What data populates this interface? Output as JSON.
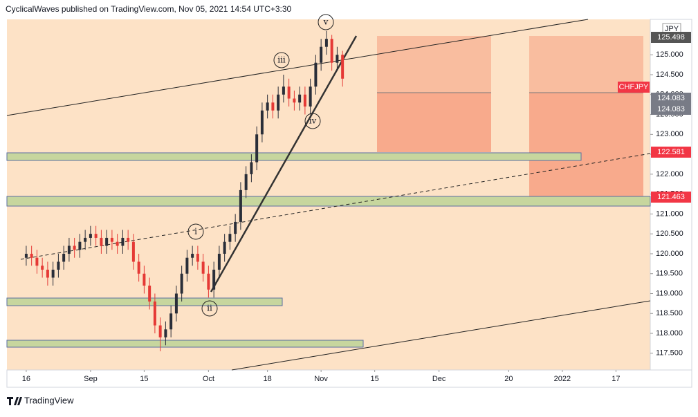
{
  "header": "CyclicalWaves published on TradingView.com, Nov 05, 2021 14:54 UTC+3:30",
  "footer": "TradingView",
  "chart_data": {
    "type": "candlestick",
    "symbol": "CHFJPY",
    "currency": "JPY",
    "x": [
      0,
      1,
      2,
      3,
      4,
      5,
      6,
      7,
      8,
      9,
      10,
      11,
      12,
      13,
      14,
      15,
      16,
      17,
      18,
      19,
      20,
      21,
      22,
      23,
      24,
      25,
      26,
      27,
      28,
      29,
      30,
      31,
      32,
      33,
      34,
      35,
      36,
      37,
      38,
      39,
      40,
      41,
      42,
      43,
      44,
      45,
      46,
      47,
      48,
      49,
      50,
      51,
      52,
      53,
      54,
      55,
      56,
      57,
      58,
      59
    ],
    "open": [
      119.9,
      120.0,
      119.9,
      119.7,
      119.6,
      119.4,
      119.6,
      119.8,
      120.0,
      120.2,
      120.1,
      120.3,
      120.4,
      120.5,
      120.4,
      120.2,
      120.4,
      120.3,
      120.2,
      120.4,
      120.3,
      119.8,
      119.5,
      119.2,
      118.8,
      118.2,
      117.9,
      118.1,
      118.5,
      119.0,
      119.5,
      119.9,
      120.0,
      119.8,
      119.5,
      119.1,
      119.6,
      120.0,
      120.3,
      120.5,
      120.8,
      121.6,
      122.0,
      122.3,
      123.0,
      123.6,
      123.8,
      123.6,
      124.0,
      124.2,
      123.9,
      123.8,
      124.0,
      123.7,
      124.2,
      124.8,
      125.2,
      125.4,
      124.8,
      125.0
    ],
    "high": [
      120.2,
      120.2,
      120.1,
      119.9,
      119.8,
      119.8,
      120.0,
      120.2,
      120.4,
      120.4,
      120.5,
      120.6,
      120.7,
      120.7,
      120.6,
      120.6,
      120.6,
      120.5,
      120.6,
      120.6,
      120.5,
      120.0,
      119.7,
      119.4,
      119.0,
      118.4,
      118.3,
      118.7,
      119.2,
      119.7,
      120.1,
      120.2,
      120.2,
      120.0,
      119.7,
      119.8,
      120.2,
      120.5,
      120.7,
      121.0,
      121.8,
      122.2,
      122.5,
      123.2,
      123.8,
      124.0,
      124.0,
      124.2,
      124.5,
      124.4,
      124.1,
      124.2,
      124.2,
      124.4,
      125.0,
      125.4,
      125.6,
      125.5,
      125.2,
      125.1
    ],
    "low": [
      119.7,
      119.7,
      119.5,
      119.4,
      119.2,
      119.2,
      119.4,
      119.6,
      119.8,
      119.9,
      119.9,
      120.1,
      120.2,
      120.2,
      120.0,
      120.0,
      120.1,
      120.0,
      120.0,
      120.1,
      119.6,
      119.3,
      119.0,
      118.6,
      118.0,
      117.55,
      117.7,
      117.9,
      118.3,
      118.8,
      119.3,
      119.7,
      119.6,
      119.3,
      118.9,
      118.9,
      119.4,
      119.8,
      120.1,
      120.3,
      120.6,
      121.4,
      121.8,
      122.1,
      122.8,
      123.4,
      123.4,
      123.4,
      123.8,
      123.7,
      123.6,
      123.6,
      123.5,
      123.5,
      124.0,
      124.6,
      125.0,
      124.6,
      124.6,
      124.2
    ],
    "close": [
      120.0,
      119.9,
      119.7,
      119.6,
      119.4,
      119.6,
      119.8,
      120.0,
      120.2,
      120.1,
      120.3,
      120.4,
      120.5,
      120.4,
      120.2,
      120.4,
      120.3,
      120.2,
      120.4,
      120.3,
      119.8,
      119.5,
      119.2,
      118.8,
      118.2,
      117.9,
      118.1,
      118.5,
      119.0,
      119.5,
      119.9,
      120.0,
      119.8,
      119.5,
      119.1,
      119.6,
      120.0,
      120.3,
      120.5,
      120.8,
      121.6,
      122.0,
      122.3,
      123.0,
      123.6,
      123.8,
      123.6,
      124.0,
      124.2,
      123.9,
      123.8,
      124.0,
      123.7,
      124.2,
      124.8,
      125.2,
      125.4,
      124.8,
      125.0,
      124.4
    ],
    "up_color": "#2a2e39",
    "down_color": "#e53935",
    "xlim": [
      -3.6,
      116.4
    ],
    "xticks": [
      {
        "value": 0,
        "label": "16"
      },
      {
        "value": 12,
        "label": "Sep"
      },
      {
        "value": 22,
        "label": "15"
      },
      {
        "value": 34,
        "label": "Oct"
      },
      {
        "value": 45,
        "label": "18"
      },
      {
        "value": 55,
        "label": "Nov"
      },
      {
        "value": 65,
        "label": "15"
      },
      {
        "value": 77,
        "label": "Dec"
      },
      {
        "value": 90,
        "label": "20"
      },
      {
        "value": 100,
        "label": "2022"
      },
      {
        "value": 110,
        "label": "17"
      }
    ],
    "ylim": [
      117.08,
      125.89
    ],
    "yticks": [
      {
        "value": 117.5,
        "label": "117.500"
      },
      {
        "value": 118,
        "label": "118.000"
      },
      {
        "value": 118.5,
        "label": "118.500"
      },
      {
        "value": 119,
        "label": "119.000"
      },
      {
        "value": 119.5,
        "label": "119.500"
      },
      {
        "value": 120,
        "label": "120.000"
      },
      {
        "value": 120.5,
        "label": "120.500"
      },
      {
        "value": 121,
        "label": "121.000"
      },
      {
        "value": 121.5,
        "label": "121.500"
      },
      {
        "value": 122,
        "label": "122.000"
      },
      {
        "value": 122.5,
        "label": "122.500"
      },
      {
        "value": 123,
        "label": "123.000"
      },
      {
        "value": 123.5,
        "label": "123.500"
      },
      {
        "value": 124,
        "label": "124.000"
      },
      {
        "value": 124.5,
        "label": "124.500"
      },
      {
        "value": 125,
        "label": "125.000"
      }
    ],
    "grid": false,
    "price_labels": [
      "125.498",
      "124.083",
      "124.083",
      "122.581",
      "121.463"
    ],
    "wave_labels": [
      "i",
      "ii",
      "iii",
      "iv",
      "v"
    ]
  }
}
